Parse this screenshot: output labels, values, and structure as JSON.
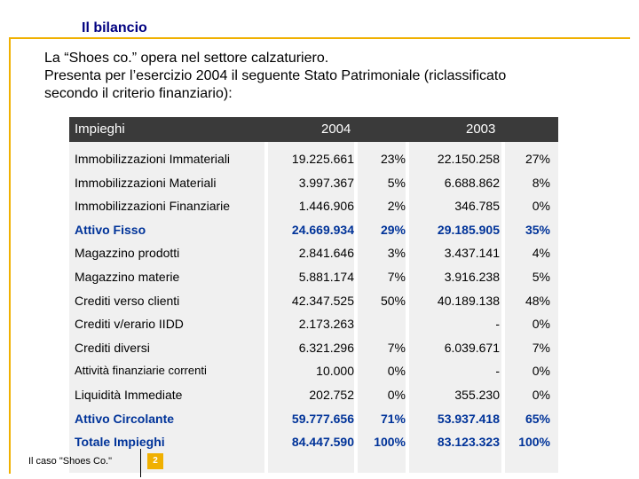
{
  "slide": {
    "title": "Il bilancio",
    "intro_lines": [
      "La “Shoes co.” opera nel settore calzaturiero.",
      "Presenta per l’esercizio 2004 il seguente Stato Patrimoniale (riclassificato",
      "secondo il criterio finanziario):"
    ]
  },
  "table": {
    "headers": {
      "label": "Impieghi",
      "year1": "2004",
      "year2": "2003"
    },
    "rows": [
      {
        "label": "Immobilizzazioni Immateriali",
        "v2004": "19.225.661",
        "p2004": "23%",
        "v2003": "22.150.258",
        "p2003": "27%",
        "bold": false
      },
      {
        "label": "Immobilizzazioni Materiali",
        "v2004": "3.997.367",
        "p2004": "5%",
        "v2003": "6.688.862",
        "p2003": "8%",
        "bold": false
      },
      {
        "label": "Immobilizzazioni Finanziarie",
        "v2004": "1.446.906",
        "p2004": "2%",
        "v2003": "346.785",
        "p2003": "0%",
        "bold": false
      },
      {
        "label": "Attivo Fisso",
        "v2004": "24.669.934",
        "p2004": "29%",
        "v2003": "29.185.905",
        "p2003": "35%",
        "bold": true
      },
      {
        "label": "Magazzino prodotti",
        "v2004": "2.841.646",
        "p2004": "3%",
        "v2003": "3.437.141",
        "p2003": "4%",
        "bold": false
      },
      {
        "label": "Magazzino materie",
        "v2004": "5.881.174",
        "p2004": "7%",
        "v2003": "3.916.238",
        "p2003": "5%",
        "bold": false
      },
      {
        "label": "Crediti verso clienti",
        "v2004": "42.347.525",
        "p2004": "50%",
        "v2003": "40.189.138",
        "p2003": "48%",
        "bold": false
      },
      {
        "label": "Crediti v/erario IIDD",
        "v2004": "2.173.263",
        "p2004": "",
        "v2003": "-",
        "p2003": "0%",
        "bold": false
      },
      {
        "label": "Crediti diversi",
        "v2004": "6.321.296",
        "p2004": "7%",
        "v2003": "6.039.671",
        "p2003": "7%",
        "bold": false
      },
      {
        "label": "Attività finanziarie correnti",
        "v2004": "10.000",
        "p2004": "0%",
        "v2003": "-",
        "p2003": "0%",
        "bold": false,
        "small": true
      },
      {
        "label": "Liquidità Immediate",
        "v2004": "202.752",
        "p2004": "0%",
        "v2003": "355.230",
        "p2003": "0%",
        "bold": false
      },
      {
        "label": "Attivo Circolante",
        "v2004": "59.777.656",
        "p2004": "71%",
        "v2003": "53.937.418",
        "p2003": "65%",
        "bold": true
      },
      {
        "label": "Totale Impieghi",
        "v2004": "84.447.590",
        "p2004": "100%",
        "v2003": "83.123.323",
        "p2003": "100%",
        "bold": true
      }
    ]
  },
  "footer": {
    "caption": "Il caso \"Shoes Co.\"",
    "page_number": "2"
  },
  "colors": {
    "accent": "#f0b000",
    "title": "#000080",
    "header_bg": "#3a3a3a",
    "table_bg": "#f0f0f0",
    "highlight": "#003399"
  }
}
